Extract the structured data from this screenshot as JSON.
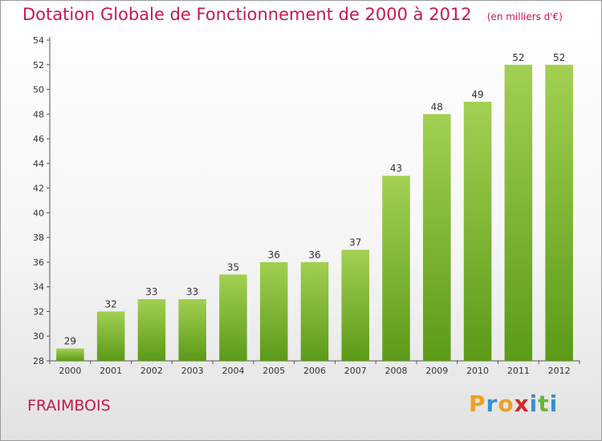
{
  "title": "Dotation Globale de Fonctionnement de 2000 à 2012",
  "subtitle": "(en milliers d'€)",
  "place": "FRAIMBOIS",
  "logo": {
    "letters": [
      "P",
      "r",
      "o",
      "x",
      "i",
      "t",
      "i"
    ],
    "colors": [
      "#f0a020",
      "#3a8fd0",
      "#f0a020",
      "#d22c2c",
      "#3a8fd0",
      "#6cb33e",
      "#3a8fd0"
    ]
  },
  "chart_data": {
    "type": "bar",
    "categories": [
      "2000",
      "2001",
      "2002",
      "2003",
      "2004",
      "2005",
      "2006",
      "2007",
      "2008",
      "2009",
      "2010",
      "2011",
      "2012"
    ],
    "values": [
      29,
      32,
      33,
      33,
      35,
      36,
      36,
      37,
      43,
      48,
      49,
      52,
      52
    ],
    "ylim": [
      28,
      54
    ],
    "yticks": [
      28,
      30,
      32,
      34,
      36,
      38,
      40,
      42,
      44,
      46,
      48,
      50,
      52,
      54
    ],
    "grid": false,
    "bar_color": "#8cc43c"
  }
}
